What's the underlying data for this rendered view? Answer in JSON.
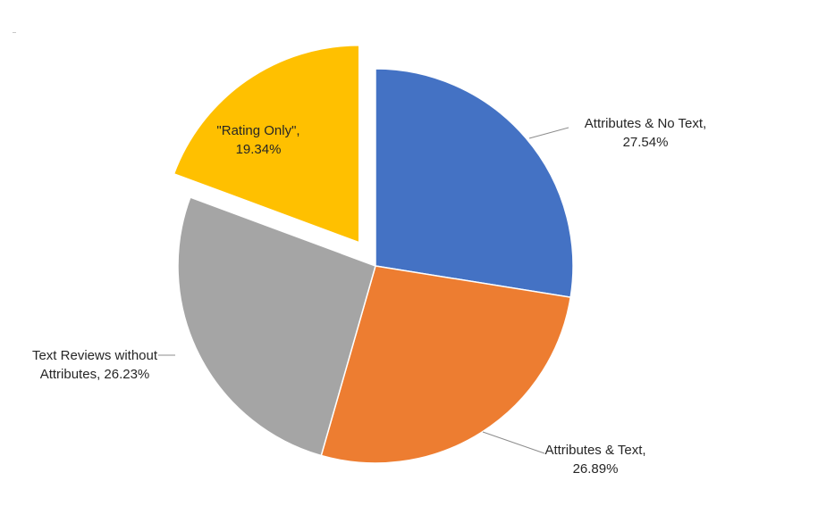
{
  "chart_data": {
    "type": "pie",
    "title": "",
    "slices": [
      {
        "name": "Attributes & No Text",
        "value": 27.54,
        "value_label": "27.54%",
        "color": "#4472C4",
        "exploded": false
      },
      {
        "name": "Attributes & Text",
        "value": 26.89,
        "value_label": "26.89%",
        "color": "#ED7D31",
        "exploded": false
      },
      {
        "name": "Text Reviews without Attributes",
        "value": 26.23,
        "value_label": "26.23%",
        "color": "#A5A5A5",
        "exploded": false
      },
      {
        "name": "\"Rating Only\"",
        "value": 19.34,
        "value_label": "19.34%",
        "color": "#FFC000",
        "exploded": true
      }
    ],
    "start_angle": "12 o'clock",
    "direction": "clockwise",
    "legend": "none",
    "data_labels": [
      {
        "slice": 0,
        "lines": [
          "Attributes & No Text,",
          "27.54%"
        ]
      },
      {
        "slice": 1,
        "lines": [
          "Attributes & Text,",
          "26.89%"
        ]
      },
      {
        "slice": 2,
        "lines": [
          "Text Reviews without",
          "Attributes, 26.23%"
        ]
      },
      {
        "slice": 3,
        "lines": [
          "\"Rating Only\",",
          "19.34%"
        ]
      }
    ]
  }
}
